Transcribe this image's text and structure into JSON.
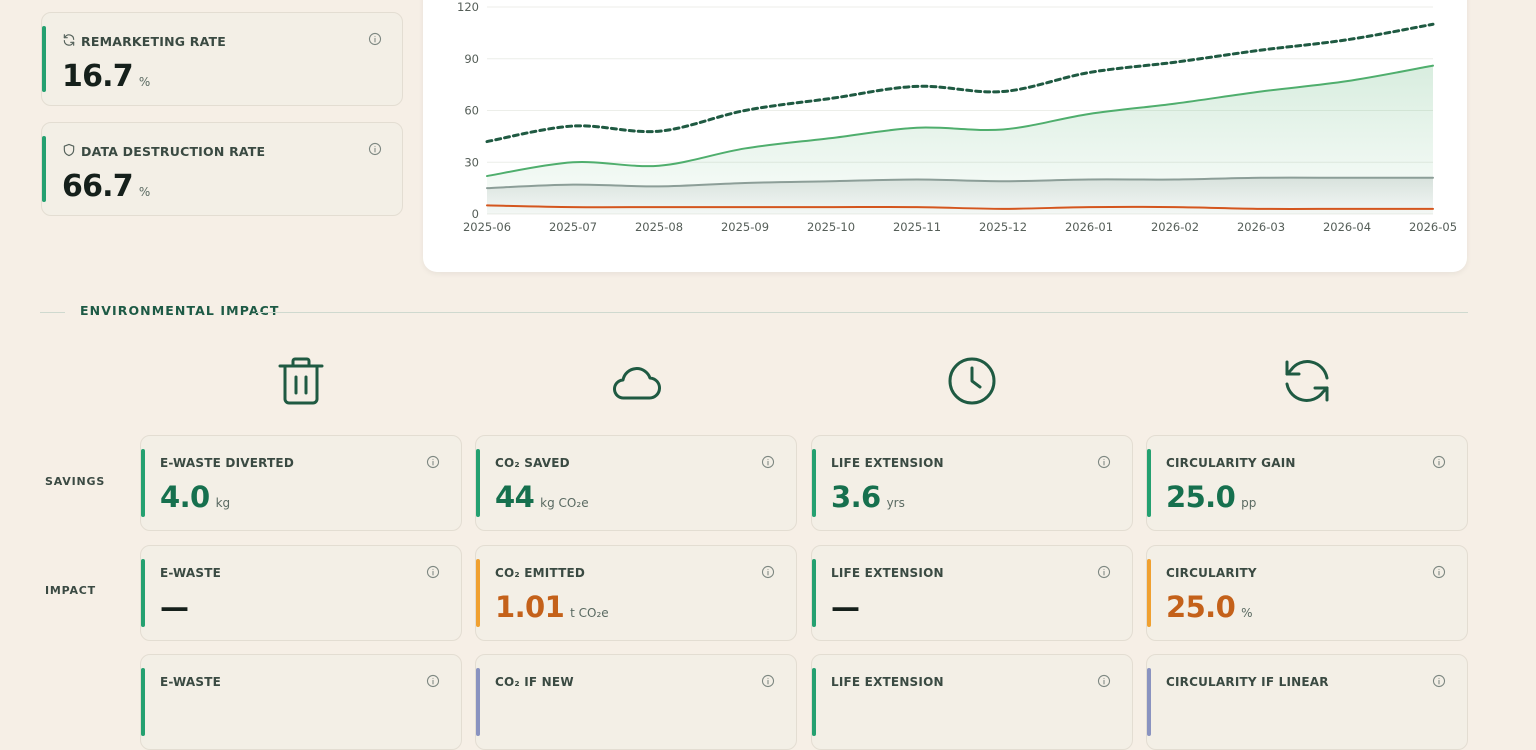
{
  "colors": {
    "accent_green": "#24a070",
    "accent_orange": "#f0a030",
    "accent_blue_gray": "#8a93c0",
    "line_green": "#4fae6d",
    "line_dark_green": "#1f5a42",
    "line_gray": "#8c9e98",
    "line_orange": "#d4561e",
    "heading_green": "#1d5a45"
  },
  "stats": [
    {
      "label": "REMARKETING RATE",
      "value": "16.7",
      "unit": "%",
      "icon": "refresh-icon"
    },
    {
      "label": "DATA DESTRUCTION RATE",
      "value": "66.7",
      "unit": "%",
      "icon": "shield-icon"
    }
  ],
  "chart_data": {
    "type": "line",
    "x": [
      "2025-06",
      "2025-07",
      "2025-08",
      "2025-09",
      "2025-10",
      "2025-11",
      "2025-12",
      "2026-01",
      "2026-02",
      "2026-03",
      "2026-04",
      "2026-05"
    ],
    "ylim": [
      0,
      120
    ],
    "yticks": [
      0,
      30,
      60,
      90,
      120
    ],
    "grid": true,
    "series": [
      {
        "values": [
          42,
          51,
          48,
          60,
          67,
          74,
          71,
          82,
          88,
          95,
          101,
          110
        ],
        "style": "dashed",
        "color": "#1f5a42",
        "fill": false
      },
      {
        "values": [
          22,
          30,
          28,
          38,
          44,
          50,
          49,
          58,
          64,
          71,
          77,
          86
        ],
        "style": "solid",
        "color": "#4fae6d",
        "fill": true
      },
      {
        "values": [
          15,
          17,
          16,
          18,
          19,
          20,
          19,
          20,
          20,
          21,
          21,
          21
        ],
        "style": "solid",
        "color": "#8c9e98",
        "fill": true
      },
      {
        "values": [
          5,
          4,
          4,
          4,
          4,
          4,
          3,
          4,
          4,
          3,
          3,
          3
        ],
        "style": "solid",
        "color": "#d4561e",
        "fill": false
      }
    ]
  },
  "section": {
    "title": "ENVIRONMENTAL IMPACT"
  },
  "columns": [
    {
      "icon": "trash-icon"
    },
    {
      "icon": "cloud-icon"
    },
    {
      "icon": "clock-icon"
    },
    {
      "icon": "refresh-icon"
    }
  ],
  "rows": [
    {
      "label": "SAVINGS",
      "cards": [
        {
          "label": "E-WASTE DIVERTED",
          "value": "4.0",
          "unit": "kg",
          "accent": "green",
          "value_color": "green"
        },
        {
          "label": "CO₂ SAVED",
          "value": "44",
          "unit": "kg CO₂e",
          "accent": "green",
          "value_color": "green"
        },
        {
          "label": "LIFE EXTENSION",
          "value": "3.6",
          "unit": "yrs",
          "accent": "green",
          "value_color": "green"
        },
        {
          "label": "CIRCULARITY GAIN",
          "value": "25.0",
          "unit": "pp",
          "accent": "green",
          "value_color": "green"
        }
      ]
    },
    {
      "label": "IMPACT",
      "cards": [
        {
          "label": "E-WASTE",
          "value": "—",
          "unit": "",
          "accent": "green",
          "value_color": "dark"
        },
        {
          "label": "CO₂ EMITTED",
          "value": "1.01",
          "unit": "t CO₂e",
          "accent": "orange",
          "value_color": "orange"
        },
        {
          "label": "LIFE EXTENSION",
          "value": "—",
          "unit": "",
          "accent": "green",
          "value_color": "dark"
        },
        {
          "label": "CIRCULARITY",
          "value": "25.0",
          "unit": "%",
          "accent": "orange",
          "value_color": "orange"
        }
      ]
    },
    {
      "label": "",
      "cards": [
        {
          "label": "E-WASTE",
          "value": "",
          "unit": "",
          "accent": "green",
          "value_color": "dark"
        },
        {
          "label": "CO₂ IF NEW",
          "value": "",
          "unit": "",
          "accent": "blue_gray",
          "value_color": "dark"
        },
        {
          "label": "LIFE EXTENSION",
          "value": "",
          "unit": "",
          "accent": "green",
          "value_color": "dark"
        },
        {
          "label": "CIRCULARITY IF LINEAR",
          "value": "",
          "unit": "",
          "accent": "blue_gray",
          "value_color": "dark"
        }
      ]
    }
  ]
}
